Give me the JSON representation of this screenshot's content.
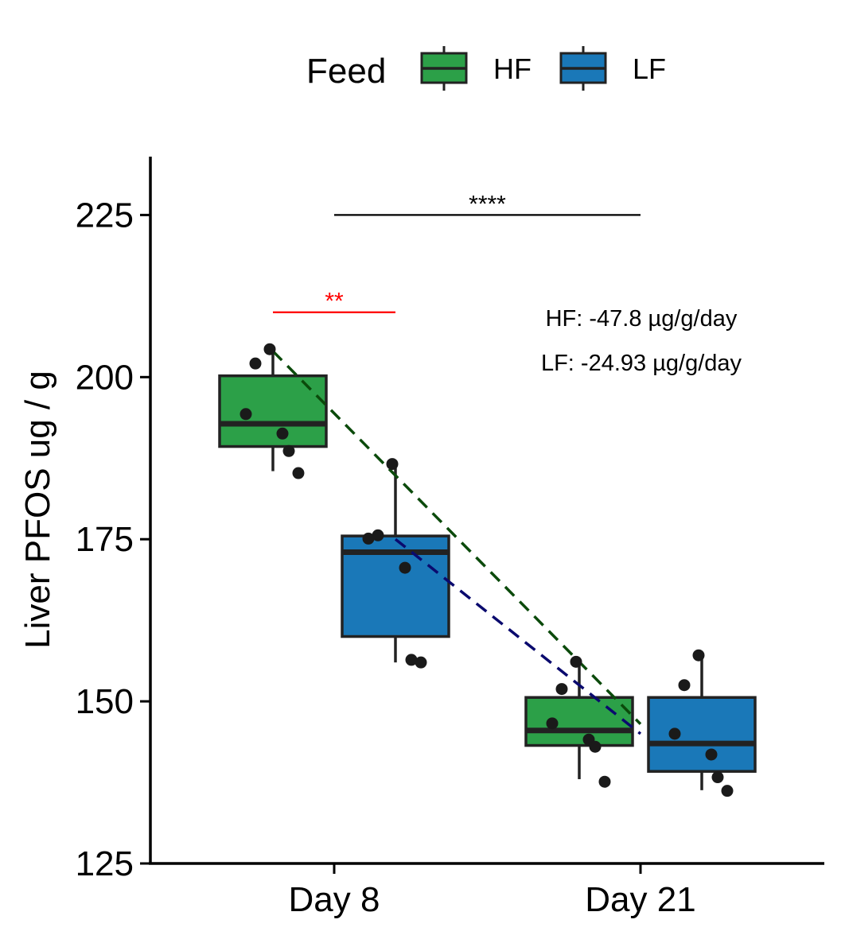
{
  "chart_data": {
    "type": "box",
    "ylabel": "Liver PFOS ug / g",
    "xlabel": "",
    "ylim": [
      125,
      234
    ],
    "y_ticks": [
      125,
      150,
      175,
      200,
      225
    ],
    "categories": [
      "Day 8",
      "Day 21"
    ],
    "legend": {
      "title": "Feed",
      "position": "top",
      "items": [
        {
          "name": "HF",
          "color": "#2ca048"
        },
        {
          "name": "LF",
          "color": "#1a78b8"
        }
      ]
    },
    "series": [
      {
        "name": "HF",
        "color": "#2ca048",
        "boxes": [
          {
            "category": "Day 8",
            "min": 185.5,
            "q1": 189.3,
            "median": 192.8,
            "q3": 200.2,
            "max": 204.5,
            "points": [
              204.3,
              202.1,
              194.3,
              191.3,
              188.6,
              185.2
            ]
          },
          {
            "category": "Day 21",
            "min": 138.0,
            "q1": 143.2,
            "median": 145.5,
            "q3": 150.6,
            "max": 156.0,
            "points": [
              156.1,
              151.9,
              146.6,
              144.1,
              143.0,
              137.6
            ]
          }
        ]
      },
      {
        "name": "LF",
        "color": "#1a78b8",
        "boxes": [
          {
            "category": "Day 8",
            "min": 156.0,
            "q1": 160.0,
            "median": 173.0,
            "q3": 175.5,
            "max": 186.5,
            "points": [
              186.6,
              175.6,
              175.1,
              170.6,
              156.4,
              156.0
            ]
          },
          {
            "category": "Day 21",
            "min": 136.3,
            "q1": 139.2,
            "median": 143.5,
            "q3": 150.6,
            "max": 157.0,
            "points": [
              157.1,
              152.5,
              145.0,
              141.8,
              138.3,
              136.2
            ]
          }
        ]
      }
    ],
    "trend_lines": [
      {
        "series": "HF",
        "color": "#0b4a0b",
        "style": "dashed",
        "from": {
          "category": "Day 8",
          "y": 204.0
        },
        "to": {
          "category": "Day 21",
          "y": 146.5
        }
      },
      {
        "series": "LF",
        "color": "#0a0a6e",
        "style": "dashed",
        "from": {
          "category": "Day 8",
          "y": 175.0
        },
        "to": {
          "category": "Day 21",
          "y": 145.0
        }
      }
    ],
    "significance": [
      {
        "label": "****",
        "color": "#000000",
        "from": "Day 8",
        "to": "Day 21",
        "y": 225
      },
      {
        "label": "**",
        "color": "#ff0000",
        "from": "Day 8 HF",
        "to": "Day 8 LF",
        "y": 210
      }
    ],
    "annotations": [
      "HF: -47.8 µg/g/day",
      "LF: -24.93 µg/g/day"
    ]
  }
}
